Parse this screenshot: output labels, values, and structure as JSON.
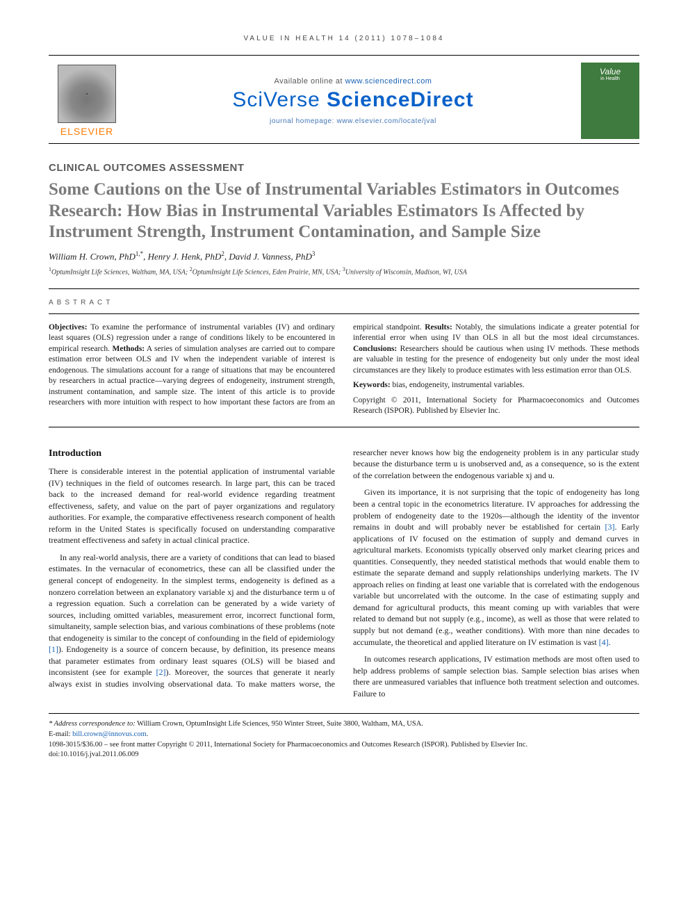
{
  "running_header": "VALUE IN HEALTH 14 (2011) 1078–1084",
  "masthead": {
    "elsevier_label": "ELSEVIER",
    "available_prefix": "Available online at ",
    "available_url": "www.sciencedirect.com",
    "brand_light": "SciVerse ",
    "brand_bold": "ScienceDirect",
    "homepage_prefix": "journal homepage: ",
    "homepage_url": "www.elsevier.com/locate/jval",
    "cover_title": "Value",
    "cover_sub": "in Health"
  },
  "section_label": "CLINICAL OUTCOMES ASSESSMENT",
  "title": "Some Cautions on the Use of Instrumental Variables Estimators in Outcomes Research: How Bias in Instrumental Variables Estimators Is Affected by Instrument Strength, Instrument Contamination, and Sample Size",
  "authors_html": "William H. Crown, PhD<sup>1,*</sup>, Henry J. Henk, PhD<sup>2</sup>, David J. Vanness, PhD<sup>3</sup>",
  "affiliations_html": "<sup>1</sup>OptumInsight Life Sciences, Waltham, MA, USA; <sup>2</sup>OptumInsight Life Sciences, Eden Prairie, MN, USA; <sup>3</sup>University of Wisconsin, Madison, WI, USA",
  "abstract_label": "ABSTRACT",
  "abstract": {
    "objectives_label": "Objectives:",
    "objectives": " To examine the performance of instrumental variables (IV) and ordinary least squares (OLS) regression under a range of conditions likely to be encountered in empirical research. ",
    "methods_label": "Methods:",
    "methods": " A series of simulation analyses are carried out to compare estimation error between OLS and IV when the independent variable of interest is endogenous. The simulations account for a range of situations that may be encountered by researchers in actual practice—varying degrees of endogeneity, instrument strength, instrument contamination, and sample size. The intent of this article is to provide researchers with more intuition with respect to how important these factors are from an empirical standpoint. ",
    "results_label": "Results:",
    "results": " Notably, the simulations indicate a greater potential for inferential error when using IV than OLS in all but the most ideal circumstances. ",
    "conclusions_label": "Conclusions:",
    "conclusions": " Researchers should be cautious when using IV methods. These methods are valuable in testing for the presence of endogeneity but only under the most ideal circumstances are they likely to produce estimates with less estimation error than OLS.",
    "keywords_label": "Keywords:",
    "keywords": " bias, endogeneity, instrumental variables.",
    "copyright": "Copyright © 2011, International Society for Pharmacoeconomics and Outcomes Research (ISPOR). Published by Elsevier Inc."
  },
  "body": {
    "intro_heading": "Introduction",
    "p1": "There is considerable interest in the potential application of instrumental variable (IV) techniques in the field of outcomes research. In large part, this can be traced back to the increased demand for real-world evidence regarding treatment effectiveness, safety, and value on the part of payer organizations and regulatory authorities. For example, the comparative effectiveness research component of health reform in the United States is specifically focused on understanding comparative treatment effectiveness and safety in actual clinical practice.",
    "p2_a": "In any real-world analysis, there are a variety of conditions that can lead to biased estimates. In the vernacular of econometrics, these can all be classified under the general concept of endogeneity. In the simplest terms, endogeneity is defined as a nonzero correlation between an explanatory variable xj and the disturbance term u of a regression equation. Such a correlation can be generated by a wide variety of sources, including omitted variables, measurement error, incorrect functional form, simultaneity, sample selection bias, and various combinations of these problems (note that endogeneity is similar to the concept of confounding in the field of epidemiology ",
    "ref1": "[1]",
    "p2_b": "). Endogeneity is a source of concern because, by definition, its presence means that parameter estimates from ordinary least squares (OLS) will be biased and inconsistent (see for example ",
    "ref2": "[2]",
    "p2_c": "). Moreover, the sources that generate it nearly always exist in studies involving observational data. To make matters worse, the researcher never knows how big the endogeneity problem is in any particular study because the disturbance term u is unobserved and, as a consequence, so is the extent of the correlation between the endogenous variable xj and u.",
    "p3_a": "Given its importance, it is not surprising that the topic of endogeneity has long been a central topic in the econometrics literature. IV approaches for addressing the problem of endogeneity date to the 1920s—although the identity of the inventor remains in doubt and will probably never be established for certain ",
    "ref3": "[3]",
    "p3_b": ". Early applications of IV focused on the estimation of supply and demand curves in agricultural markets. Economists typically observed only market clearing prices and quantities. Consequently, they needed statistical methods that would enable them to estimate the separate demand and supply relationships underlying markets. The IV approach relies on finding at least one variable that is correlated with the endogenous variable but uncorrelated with the outcome. In the case of estimating supply and demand for agricultural products, this meant coming up with variables that were related to demand but not supply (e.g., income), as well as those that were related to supply but not demand (e.g., weather conditions). With more than nine decades to accumulate, the theoretical and applied literature on IV estimation is vast ",
    "ref4": "[4]",
    "p3_c": ".",
    "p4": "In outcomes research applications, IV estimation methods are most often used to help address problems of sample selection bias. Sample selection bias arises when there are unmeasured variables that influence both treatment selection and outcomes. Failure to"
  },
  "footnotes": {
    "correspondence_label": "* Address correspondence to:",
    "correspondence": " William Crown, OptumInsight Life Sciences, 950 Winter Street, Suite 3800, Waltham, MA, USA.",
    "email_label": "E-mail: ",
    "email": "bill.crown@innovus.com",
    "issn_line": "1098-3015/$36.00 – see front matter Copyright © 2011, International Society for Pharmacoeconomics and Outcomes Research (ISPOR). Published by Elsevier Inc.",
    "doi": "doi:10.1016/j.jval.2011.06.009"
  },
  "colors": {
    "link": "#1660b3",
    "brand_orange": "#ff7a00",
    "brand_blue": "#0a62c9",
    "title_grey": "#7a7a7a",
    "cover_green": "#3f7a3f"
  }
}
